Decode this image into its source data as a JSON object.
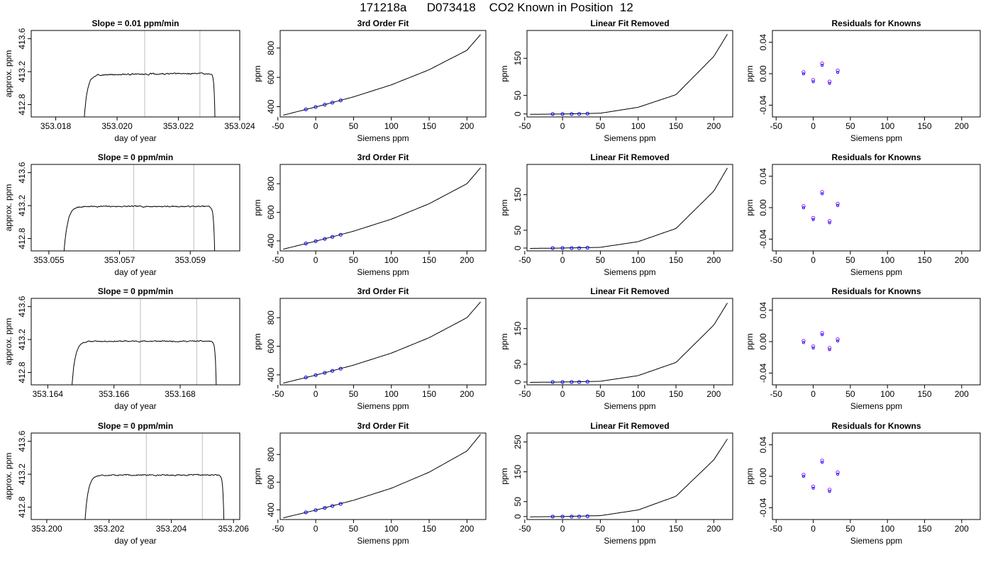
{
  "page": {
    "title": "171218a      D073418    CO2 Known in Position  12"
  },
  "chart_data": [
    {
      "type": "line",
      "title": "Slope =  0.01  ppm/min",
      "xlabel": "day of year",
      "ylabel": "approx. ppm",
      "xlim": [
        353.0172,
        353.024
      ],
      "ylim": [
        412.65,
        413.7
      ],
      "xticks": [
        353.018,
        353.02,
        353.022,
        353.024
      ],
      "xtick_labels": [
        "353.018",
        "353.020",
        "353.022",
        "353.024"
      ],
      "yticks": [
        412.8,
        413.2,
        413.6
      ],
      "ytick_labels": [
        "412.8",
        "413.2",
        "413.6"
      ],
      "vlines": [
        353.0209,
        353.0227
      ],
      "trace": {
        "start": 353.0189,
        "end": 353.0232,
        "plateau": 413.17,
        "rise_time": 0.0003,
        "noise": 0.015,
        "drift": 0.01,
        "seed": 3
      }
    },
    {
      "type": "line",
      "title": "3rd Order Fit",
      "xlabel": "Siemens ppm",
      "ylabel": "ppm",
      "xlim": [
        -47,
        225
      ],
      "ylim": [
        330,
        920
      ],
      "xticks": [
        -50,
        0,
        50,
        100,
        150,
        200
      ],
      "xtick_labels": [
        "-50",
        "0",
        "50",
        "100",
        "150",
        "200"
      ],
      "yticks": [
        400,
        600,
        800
      ],
      "ytick_labels": [
        "400",
        "600",
        "800"
      ],
      "curve": {
        "x": [
          -43,
          0,
          50,
          100,
          150,
          200,
          218
        ],
        "y": [
          342,
          398,
          467,
          549,
          652,
          785,
          892
        ]
      },
      "points": {
        "x": [
          -13,
          0,
          12,
          22,
          33
        ],
        "y": [
          382,
          398,
          414,
          428,
          443
        ]
      }
    },
    {
      "type": "line",
      "title": "Linear Fit Removed",
      "xlabel": "Siemens ppm",
      "ylabel": "ppm",
      "xlim": [
        -47,
        225
      ],
      "ylim": [
        -8,
        225
      ],
      "xticks": [
        -50,
        0,
        50,
        100,
        150,
        200
      ],
      "xtick_labels": [
        "-50",
        "0",
        "50",
        "100",
        "150",
        "200"
      ],
      "yticks": [
        0,
        50,
        150
      ],
      "ytick_labels": [
        "0",
        "50",
        "150"
      ],
      "curve": {
        "x": [
          -43,
          0,
          50,
          100,
          150,
          200,
          218
        ],
        "y": [
          -1,
          0,
          2,
          18,
          52,
          155,
          215
        ]
      },
      "points": {
        "x": [
          -13,
          0,
          12,
          22,
          33
        ],
        "y": [
          0,
          0,
          0,
          0,
          1
        ]
      }
    },
    {
      "type": "scatter",
      "title": "Residuals for Knowns",
      "xlabel": "Siemens ppm",
      "ylabel": "ppm",
      "xlim": [
        -55,
        225
      ],
      "ylim": [
        -0.055,
        0.055
      ],
      "xticks": [
        -50,
        0,
        50,
        100,
        150,
        200
      ],
      "xtick_labels": [
        "-50",
        "0",
        "50",
        "100",
        "150",
        "200"
      ],
      "yticks": [
        -0.04,
        0.0,
        0.04
      ],
      "ytick_labels": [
        "-0.04",
        "0.00",
        "0.04"
      ],
      "points": {
        "x": [
          -13,
          0,
          12,
          22,
          33
        ],
        "y": [
          0.002,
          -0.008,
          0.013,
          -0.01,
          0.004
        ]
      }
    },
    {
      "type": "line",
      "title": "Slope =  0  ppm/min",
      "xlabel": "day of year",
      "ylabel": "approx. ppm",
      "xlim": [
        353.0545,
        353.0604
      ],
      "ylim": [
        412.65,
        413.7
      ],
      "xticks": [
        353.055,
        353.057,
        353.059
      ],
      "xtick_labels": [
        "353.055",
        "353.057",
        "353.059"
      ],
      "yticks": [
        412.8,
        413.2,
        413.6
      ],
      "ytick_labels": [
        "412.8",
        "413.2",
        "413.6"
      ],
      "vlines": [
        353.0574,
        353.0591
      ],
      "trace": {
        "start": 353.0554,
        "end": 353.0597,
        "plateau": 413.19,
        "rise_time": 0.0003,
        "noise": 0.013,
        "drift": 0.0,
        "seed": 7
      }
    },
    {
      "type": "line",
      "title": "3rd Order Fit",
      "xlabel": "Siemens ppm",
      "ylabel": "ppm",
      "xlim": [
        -47,
        225
      ],
      "ylim": [
        330,
        935
      ],
      "xticks": [
        -50,
        0,
        50,
        100,
        150,
        200
      ],
      "xtick_labels": [
        "-50",
        "0",
        "50",
        "100",
        "150",
        "200"
      ],
      "yticks": [
        400,
        600,
        800
      ],
      "ytick_labels": [
        "400",
        "600",
        "800"
      ],
      "curve": {
        "x": [
          -43,
          0,
          50,
          100,
          150,
          200,
          218
        ],
        "y": [
          342,
          398,
          468,
          552,
          660,
          800,
          912
        ]
      },
      "points": {
        "x": [
          -13,
          0,
          12,
          22,
          33
        ],
        "y": [
          382,
          398,
          414,
          428,
          443
        ]
      }
    },
    {
      "type": "line",
      "title": "Linear Fit Removed",
      "xlabel": "Siemens ppm",
      "ylabel": "ppm",
      "xlim": [
        -47,
        225
      ],
      "ylim": [
        -8,
        235
      ],
      "xticks": [
        -50,
        0,
        50,
        100,
        150,
        200
      ],
      "xtick_labels": [
        "-50",
        "0",
        "50",
        "100",
        "150",
        "200"
      ],
      "yticks": [
        0,
        50,
        150
      ],
      "ytick_labels": [
        "0",
        "50",
        "150"
      ],
      "curve": {
        "x": [
          -43,
          0,
          50,
          100,
          150,
          200,
          218
        ],
        "y": [
          -1,
          0,
          2,
          18,
          55,
          160,
          225
        ]
      },
      "points": {
        "x": [
          -13,
          0,
          12,
          22,
          33
        ],
        "y": [
          0,
          0,
          0,
          0,
          1
        ]
      }
    },
    {
      "type": "scatter",
      "title": "Residuals for Knowns",
      "xlabel": "Siemens ppm",
      "ylabel": "ppm",
      "xlim": [
        -55,
        225
      ],
      "ylim": [
        -0.055,
        0.055
      ],
      "xticks": [
        -50,
        0,
        50,
        100,
        150,
        200
      ],
      "xtick_labels": [
        "-50",
        "0",
        "50",
        "100",
        "150",
        "200"
      ],
      "yticks": [
        -0.04,
        0.0,
        0.04
      ],
      "ytick_labels": [
        "-0.04",
        "0.00",
        "0.04"
      ],
      "points": {
        "x": [
          -13,
          0,
          12,
          22,
          33
        ],
        "y": [
          0.002,
          -0.013,
          0.02,
          -0.017,
          0.005
        ]
      }
    },
    {
      "type": "line",
      "title": "Slope =  0  ppm/min",
      "xlabel": "day of year",
      "ylabel": "approx. ppm",
      "xlim": [
        353.1635,
        353.1698
      ],
      "ylim": [
        412.65,
        413.7
      ],
      "xticks": [
        353.164,
        353.166,
        353.168
      ],
      "xtick_labels": [
        "353.164",
        "353.166",
        "353.168"
      ],
      "yticks": [
        412.8,
        413.2,
        413.6
      ],
      "ytick_labels": [
        "412.8",
        "413.2",
        "413.6"
      ],
      "vlines": [
        353.1668,
        353.1685
      ],
      "trace": {
        "start": 353.1647,
        "end": 353.1691,
        "plateau": 413.18,
        "rise_time": 0.0003,
        "noise": 0.012,
        "drift": 0.0,
        "seed": 11
      }
    },
    {
      "type": "line",
      "title": "3rd Order Fit",
      "xlabel": "Siemens ppm",
      "ylabel": "ppm",
      "xlim": [
        -47,
        225
      ],
      "ylim": [
        330,
        935
      ],
      "xticks": [
        -50,
        0,
        50,
        100,
        150,
        200
      ],
      "xtick_labels": [
        "-50",
        "0",
        "50",
        "100",
        "150",
        "200"
      ],
      "yticks": [
        400,
        600,
        800
      ],
      "ytick_labels": [
        "400",
        "600",
        "800"
      ],
      "curve": {
        "x": [
          -43,
          0,
          50,
          100,
          150,
          200,
          218
        ],
        "y": [
          342,
          398,
          468,
          552,
          660,
          800,
          910
        ]
      },
      "points": {
        "x": [
          -13,
          0,
          12,
          22,
          33
        ],
        "y": [
          382,
          398,
          414,
          428,
          443
        ]
      }
    },
    {
      "type": "line",
      "title": "Linear Fit Removed",
      "xlabel": "Siemens ppm",
      "ylabel": "ppm",
      "xlim": [
        -47,
        225
      ],
      "ylim": [
        -8,
        235
      ],
      "xticks": [
        -50,
        0,
        50,
        100,
        150,
        200
      ],
      "xtick_labels": [
        "-50",
        "0",
        "50",
        "100",
        "150",
        "200"
      ],
      "yticks": [
        0,
        50,
        150
      ],
      "ytick_labels": [
        "0",
        "50",
        "150"
      ],
      "curve": {
        "x": [
          -43,
          0,
          50,
          100,
          150,
          200,
          218
        ],
        "y": [
          -1,
          0,
          2,
          18,
          55,
          160,
          222
        ]
      },
      "points": {
        "x": [
          -13,
          0,
          12,
          22,
          33
        ],
        "y": [
          0,
          0,
          0,
          0,
          1
        ]
      }
    },
    {
      "type": "scatter",
      "title": "Residuals for Knowns",
      "xlabel": "Siemens ppm",
      "ylabel": "ppm",
      "xlim": [
        -55,
        225
      ],
      "ylim": [
        -0.055,
        0.055
      ],
      "xticks": [
        -50,
        0,
        50,
        100,
        150,
        200
      ],
      "xtick_labels": [
        "-50",
        "0",
        "50",
        "100",
        "150",
        "200"
      ],
      "yticks": [
        -0.04,
        0.0,
        0.04
      ],
      "ytick_labels": [
        "-0.04",
        "0.00",
        "0.04"
      ],
      "points": {
        "x": [
          -13,
          0,
          12,
          22,
          33
        ],
        "y": [
          0.001,
          -0.006,
          0.011,
          -0.008,
          0.003
        ]
      }
    },
    {
      "type": "line",
      "title": "Slope =  0  ppm/min",
      "xlabel": "day of year",
      "ylabel": "approx. ppm",
      "xlim": [
        353.1995,
        353.2062
      ],
      "ylim": [
        412.65,
        413.7
      ],
      "xticks": [
        353.2,
        353.202,
        353.204,
        353.206
      ],
      "xtick_labels": [
        "353.200",
        "353.202",
        "353.204",
        "353.206"
      ],
      "yticks": [
        412.8,
        413.2,
        413.6
      ],
      "ytick_labels": [
        "412.8",
        "413.2",
        "413.6"
      ],
      "vlines": [
        353.2032,
        353.205
      ],
      "trace": {
        "start": 353.2012,
        "end": 353.2057,
        "plateau": 413.19,
        "rise_time": 0.0003,
        "noise": 0.012,
        "drift": 0.0,
        "seed": 17
      }
    },
    {
      "type": "line",
      "title": "3rd Order Fit",
      "xlabel": "Siemens ppm",
      "ylabel": "ppm",
      "xlim": [
        -47,
        225
      ],
      "ylim": [
        330,
        955
      ],
      "xticks": [
        -50,
        0,
        50,
        100,
        150,
        200
      ],
      "xtick_labels": [
        "-50",
        "0",
        "50",
        "100",
        "150",
        "200"
      ],
      "yticks": [
        400,
        600,
        800
      ],
      "ytick_labels": [
        "400",
        "600",
        "800"
      ],
      "curve": {
        "x": [
          -43,
          0,
          50,
          100,
          150,
          200,
          218
        ],
        "y": [
          342,
          398,
          469,
          556,
          672,
          825,
          945
        ]
      },
      "points": {
        "x": [
          -13,
          0,
          12,
          22,
          33
        ],
        "y": [
          382,
          398,
          414,
          428,
          443
        ]
      }
    },
    {
      "type": "line",
      "title": "Linear Fit Removed",
      "xlabel": "Siemens ppm",
      "ylabel": "ppm",
      "xlim": [
        -47,
        225
      ],
      "ylim": [
        -10,
        280
      ],
      "xticks": [
        -50,
        0,
        50,
        100,
        150,
        200
      ],
      "xtick_labels": [
        "-50",
        "0",
        "50",
        "100",
        "150",
        "200"
      ],
      "yticks": [
        0,
        50,
        150,
        250
      ],
      "ytick_labels": [
        "0",
        "50",
        "150",
        "250"
      ],
      "curve": {
        "x": [
          -43,
          0,
          50,
          100,
          150,
          200,
          218
        ],
        "y": [
          -1,
          0,
          3,
          22,
          68,
          190,
          260
        ]
      },
      "points": {
        "x": [
          -13,
          0,
          12,
          22,
          33
        ],
        "y": [
          0,
          0,
          0,
          0,
          1
        ]
      }
    },
    {
      "type": "scatter",
      "title": "Residuals for Knowns",
      "xlabel": "Siemens ppm",
      "ylabel": "ppm",
      "xlim": [
        -55,
        225
      ],
      "ylim": [
        -0.055,
        0.055
      ],
      "xticks": [
        -50,
        0,
        50,
        100,
        150,
        200
      ],
      "xtick_labels": [
        "-50",
        "0",
        "50",
        "100",
        "150",
        "200"
      ],
      "yticks": [
        -0.04,
        0.0,
        0.04
      ],
      "ytick_labels": [
        "-0.04",
        "0.00",
        "0.04"
      ],
      "points": {
        "x": [
          -13,
          0,
          12,
          22,
          33
        ],
        "y": [
          0.002,
          -0.013,
          0.02,
          -0.017,
          0.005
        ]
      }
    }
  ],
  "colors": {
    "line": "#000000",
    "vline": "#c8c8c8",
    "point_blue": "#0000ff",
    "point_purple": "#a020f0",
    "point_red": "#ff0000"
  }
}
